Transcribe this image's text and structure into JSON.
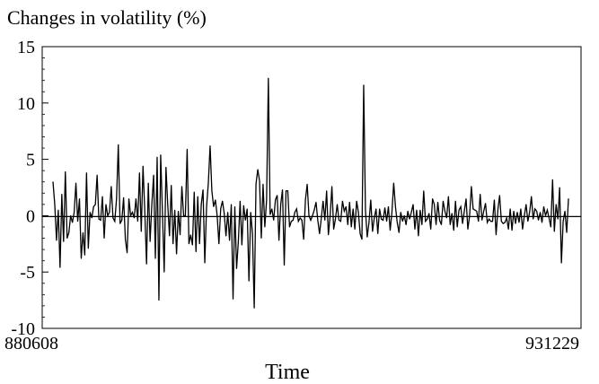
{
  "chart_data": {
    "type": "line",
    "title": "Changes in volatility (%)",
    "xlabel": "Time",
    "ylabel": "",
    "ylim": [
      -10,
      15
    ],
    "yticks": [
      15,
      10,
      5,
      0,
      -5,
      -10
    ],
    "x_tick_labels": [
      "880608",
      "931229"
    ],
    "zero_line": true,
    "grid": false,
    "series": [
      {
        "values": [
          3.0,
          1.0,
          -2.2,
          0.5,
          -4.6,
          1.9,
          -2.3,
          3.9,
          -2.0,
          -1.5,
          0.0,
          -0.6,
          0.3,
          2.9,
          -0.5,
          1.5,
          -3.8,
          -1.5,
          -3.5,
          3.8,
          -2.9,
          0.3,
          -0.2,
          0.8,
          1.0,
          3.6,
          -0.3,
          -0.4,
          1.7,
          -2.0,
          1.0,
          0.0,
          0.3,
          2.6,
          -0.2,
          -0.5,
          1.5,
          6.3,
          -0.7,
          -0.4,
          1.6,
          -2.1,
          -3.3,
          1.5,
          0.0,
          0.3,
          -0.2,
          1.5,
          -0.5,
          3.8,
          -1.4,
          4.4,
          0.4,
          -4.3,
          2.9,
          -2.3,
          1.0,
          3.6,
          -3.8,
          5.2,
          -7.5,
          5.4,
          0.3,
          -5.0,
          4.3,
          1.0,
          -1.8,
          2.7,
          -2.5,
          0.5,
          -3.4,
          0.4,
          -1.7,
          2.6,
          0.0,
          0.0,
          5.9,
          -2.5,
          -1.7,
          -2.6,
          2.1,
          -3.2,
          1.7,
          -2.5,
          1.0,
          2.3,
          -4.2,
          0.8,
          2.9,
          6.2,
          2.2,
          0.8,
          1.4,
          0.0,
          -2.5,
          0.6,
          1.3,
          0.2,
          -1.8,
          0.3,
          -2.2,
          1.0,
          -7.4,
          0.8,
          -4.7,
          -2.3,
          1.3,
          -2.6,
          0.9,
          -0.4,
          0.6,
          -5.8,
          0.3,
          -1.6,
          -8.2,
          2.8,
          4.1,
          3.1,
          -2.0,
          2.8,
          -1.0,
          1.4,
          12.2,
          0.1,
          0.6,
          -0.4,
          1.4,
          1.8,
          -2.2,
          1.0,
          2.3,
          -4.4,
          2.2,
          2.2,
          -1.0,
          -0.5,
          -0.4,
          0.3,
          0.6,
          -0.5,
          -0.2,
          -0.4,
          -2.1,
          1.4,
          2.8,
          0.0,
          -0.4,
          0.0,
          0.5,
          1.2,
          -0.4,
          -1.6,
          -0.2,
          1.3,
          -0.4,
          2.2,
          -1.7,
          0.0,
          2.6,
          -1.2,
          -0.3,
          1.0,
          -0.4,
          -0.5,
          1.3,
          0.4,
          0.8,
          -0.8,
          1.2,
          -1.0,
          0.6,
          -1.2,
          1.3,
          0.3,
          -1.6,
          -2.1,
          11.6,
          0.5,
          -1.9,
          -0.6,
          1.4,
          -1.4,
          -0.2,
          0.6,
          -1.6,
          0.6,
          -0.3,
          -0.4,
          0.7,
          -0.5,
          0.8,
          -1.3,
          0.3,
          2.9,
          0.8,
          -0.6,
          -1.5,
          0.3,
          -0.5,
          0.0,
          -0.8,
          0.4,
          -0.3,
          0.3,
          1.0,
          -1.2,
          0.5,
          -1.8,
          0.5,
          -0.8,
          2.2,
          -0.5,
          -0.3,
          0.2,
          -1.2,
          1.5,
          1.0,
          -0.8,
          1.2,
          -0.4,
          -0.8,
          1.3,
          0.4,
          -0.2,
          1.7,
          -0.8,
          0.2,
          -1.3,
          1.3,
          -1.0,
          0.5,
          0.8,
          -0.7,
          0.4,
          1.5,
          -1.2,
          0.0,
          2.6,
          0.6,
          0.5,
          0.4,
          -0.5,
          1.9,
          -0.4,
          0.4,
          1.1,
          -0.6,
          -0.3,
          -0.5,
          -0.5,
          1.4,
          -1.7,
          0.5,
          1.8,
          -0.5,
          -0.7,
          -0.6,
          -0.2,
          -1.2,
          0.6,
          -1.3,
          0.4,
          -0.7,
          0.3,
          -0.6,
          0.6,
          -1.2,
          0.0,
          1.0,
          -0.5,
          0.3,
          1.7,
          -0.3,
          0.6,
          0.4,
          -0.4,
          0.3,
          -0.6,
          0.8,
          0.0,
          0.5,
          -0.2,
          -1.0,
          3.2,
          -1.4,
          1.0,
          -0.3,
          2.5,
          -4.2,
          -0.5,
          0.4,
          -1.5,
          1.5
        ]
      }
    ]
  }
}
